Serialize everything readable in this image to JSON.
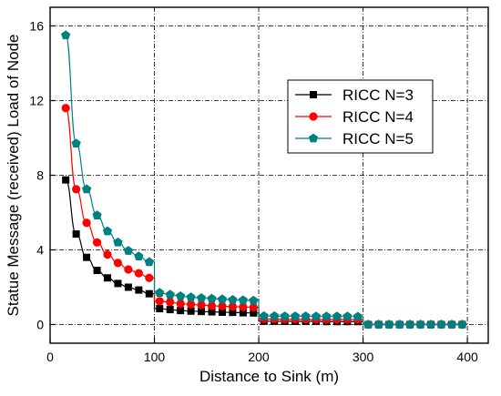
{
  "chart_data": {
    "type": "line",
    "xlabel": "Distance to Sink (m)",
    "ylabel": "Statue Message (received) Load of Node",
    "xlim": [
      0,
      420
    ],
    "ylim": [
      -1,
      17
    ],
    "xticks": [
      0,
      100,
      200,
      300,
      400
    ],
    "yticks": [
      0,
      4,
      8,
      12,
      16
    ],
    "grid": true,
    "legend_position": "top-right",
    "x": [
      15,
      25,
      35,
      45,
      55,
      65,
      75,
      85,
      95,
      105,
      115,
      125,
      135,
      145,
      155,
      165,
      175,
      185,
      195,
      205,
      215,
      225,
      235,
      245,
      255,
      265,
      275,
      285,
      295,
      305,
      315,
      325,
      335,
      345,
      355,
      365,
      375,
      385,
      395
    ],
    "series": [
      {
        "name": "RICC N=3",
        "color": "#000000",
        "marker": "square",
        "values": [
          7.75,
          4.85,
          3.6,
          2.9,
          2.5,
          2.2,
          2.0,
          1.85,
          1.65,
          0.85,
          0.8,
          0.75,
          0.72,
          0.7,
          0.68,
          0.66,
          0.65,
          0.63,
          0.62,
          0.18,
          0.18,
          0.17,
          0.17,
          0.17,
          0.17,
          0.16,
          0.16,
          0.16,
          0.16,
          0.0,
          0.0,
          0.0,
          0.0,
          0.0,
          0.0,
          0.0,
          0.0,
          0.0,
          0.0
        ]
      },
      {
        "name": "RICC N=4",
        "color": "#ff0000",
        "marker": "circle",
        "values": [
          11.6,
          7.25,
          5.45,
          4.4,
          3.75,
          3.3,
          2.95,
          2.75,
          2.5,
          1.25,
          1.2,
          1.12,
          1.08,
          1.05,
          1.0,
          0.98,
          0.96,
          0.94,
          0.92,
          0.3,
          0.29,
          0.28,
          0.28,
          0.28,
          0.27,
          0.27,
          0.27,
          0.27,
          0.26,
          0.0,
          0.0,
          0.0,
          0.0,
          0.0,
          0.0,
          0.0,
          0.0,
          0.0,
          0.0
        ]
      },
      {
        "name": "RICC N=5",
        "color": "#008080",
        "marker": "pentagon",
        "values": [
          15.5,
          9.7,
          7.25,
          5.85,
          5.0,
          4.4,
          3.95,
          3.65,
          3.35,
          1.7,
          1.6,
          1.52,
          1.46,
          1.42,
          1.38,
          1.35,
          1.32,
          1.3,
          1.28,
          0.45,
          0.45,
          0.44,
          0.44,
          0.44,
          0.43,
          0.43,
          0.43,
          0.43,
          0.42,
          0.0,
          0.0,
          0.0,
          0.0,
          0.0,
          0.0,
          0.0,
          0.0,
          0.0,
          0.0
        ]
      }
    ]
  }
}
